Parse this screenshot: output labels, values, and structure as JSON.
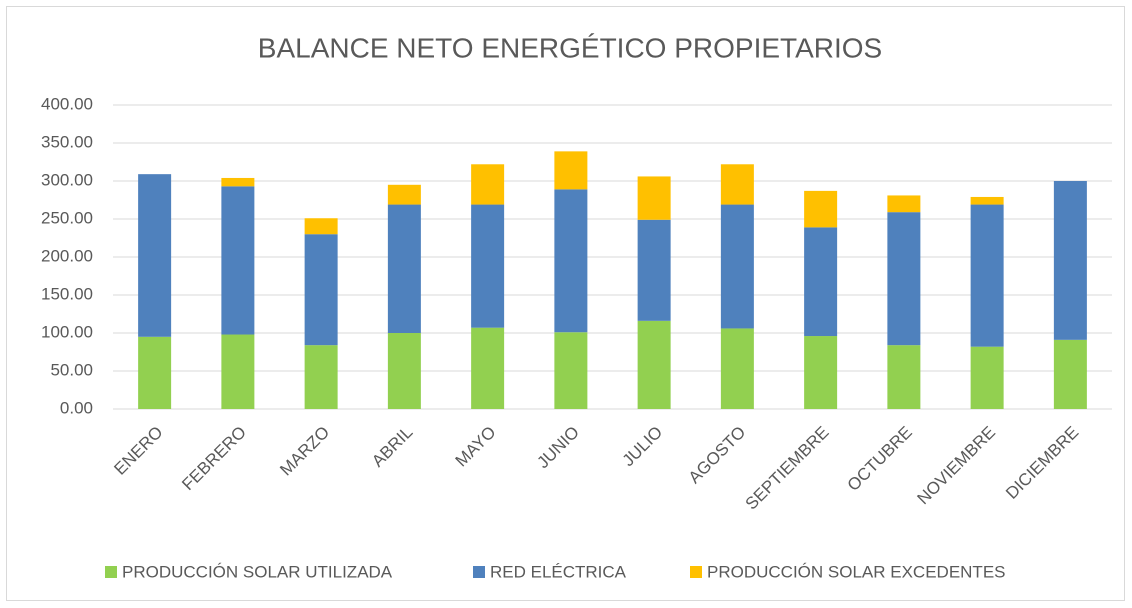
{
  "chart_data": {
    "type": "stacked_bar",
    "title": "BALANCE NETO ENERGÉTICO PROPIETARIOS",
    "categories": [
      "ENERO",
      "FEBRERO",
      "MARZO",
      "ABRIL",
      "MAYO",
      "JUNIO",
      "JULIO",
      "AGOSTO",
      "SEPTIEMBRE",
      "OCTUBRE",
      "NOVIEMBRE",
      "DICIEMBRE"
    ],
    "series": [
      {
        "name": "PRODUCCIÓN SOLAR UTILIZADA",
        "color": "#92d050",
        "values": [
          95,
          98,
          84,
          100,
          107,
          101,
          116,
          106,
          96,
          84,
          82,
          91
        ]
      },
      {
        "name": "RED ELÉCTRICA",
        "color": "#4f81bd",
        "values": [
          214,
          195,
          146,
          169,
          162,
          188,
          133,
          163,
          143,
          175,
          187,
          209
        ]
      },
      {
        "name": "PRODUCCIÓN SOLAR EXCEDENTES",
        "color": "#ffc000",
        "values": [
          0,
          11,
          21,
          26,
          53,
          50,
          57,
          53,
          48,
          22,
          10,
          0
        ]
      }
    ],
    "ylim": [
      0,
      400
    ],
    "yticks": [
      {
        "value": 0,
        "label": "0.00"
      },
      {
        "value": 50,
        "label": "50.00"
      },
      {
        "value": 100,
        "label": "100.00"
      },
      {
        "value": 150,
        "label": "150.00"
      },
      {
        "value": 200,
        "label": "200.00"
      },
      {
        "value": 250,
        "label": "250.00"
      },
      {
        "value": 300,
        "label": "300.00"
      },
      {
        "value": 350,
        "label": "350.00"
      },
      {
        "value": 400,
        "label": "400.00"
      }
    ],
    "grid": true,
    "legend": "bottom"
  }
}
